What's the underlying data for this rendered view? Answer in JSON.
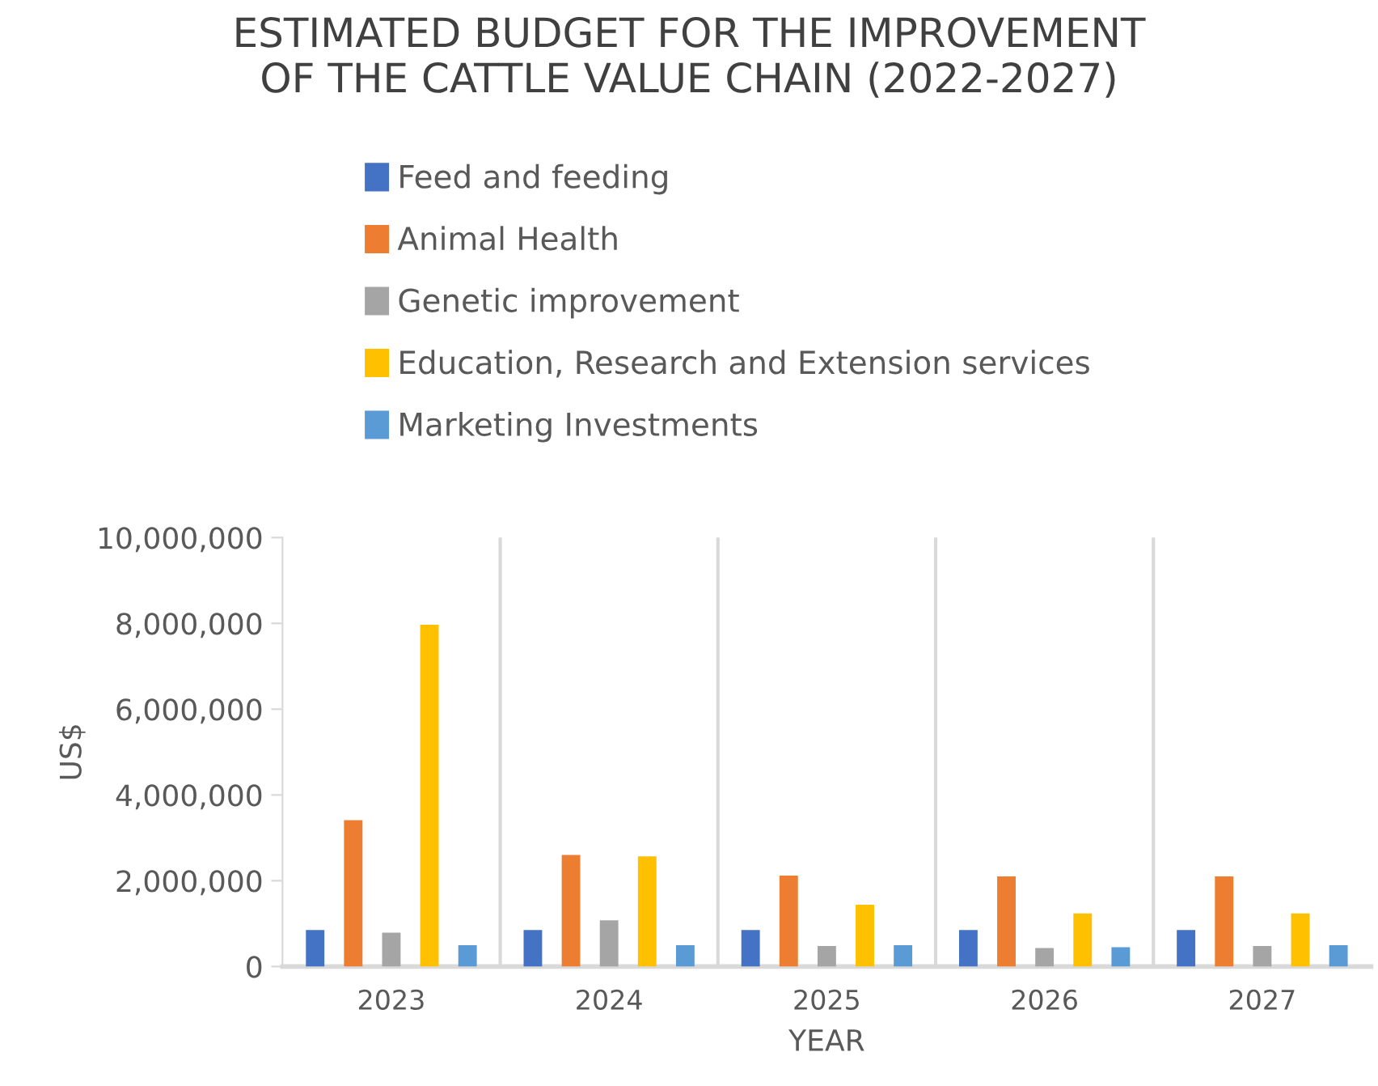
{
  "chart_data": {
    "type": "bar",
    "title": "ESTIMATED BUDGET FOR THE IMPROVEMENT\nOF THE CATTLE VALUE CHAIN (2022-2027)",
    "xlabel": "YEAR",
    "ylabel": "US$",
    "categories": [
      "2023",
      "2024",
      "2025",
      "2026",
      "2027"
    ],
    "series": [
      {
        "name": "Feed and feeding",
        "color": "#4472c4",
        "values": [
          850000,
          850000,
          850000,
          850000,
          850000
        ]
      },
      {
        "name": "Animal Health",
        "color": "#ed7d31",
        "values": [
          3410000,
          2600000,
          2120000,
          2100000,
          2100000
        ]
      },
      {
        "name": "Genetic improvement",
        "color": "#a5a5a5",
        "values": [
          790000,
          1080000,
          480000,
          430000,
          480000
        ]
      },
      {
        "name": "Education, Research and Extension services",
        "color": "#ffc000",
        "values": [
          7970000,
          2570000,
          1440000,
          1240000,
          1240000
        ]
      },
      {
        "name": "Marketing Investments",
        "color": "#5b9bd5",
        "values": [
          500000,
          500000,
          500000,
          450000,
          500000
        ]
      }
    ],
    "ylim": [
      0,
      10000000
    ],
    "yticks": [
      {
        "value": 0,
        "label": "0"
      },
      {
        "value": 2000000,
        "label": "2,000,000"
      },
      {
        "value": 4000000,
        "label": "4,000,000"
      },
      {
        "value": 6000000,
        "label": "6,000,000"
      },
      {
        "value": 8000000,
        "label": "8,000,000"
      },
      {
        "value": 10000000,
        "label": "10,000,000"
      }
    ],
    "grid": "x",
    "legend": "top"
  }
}
